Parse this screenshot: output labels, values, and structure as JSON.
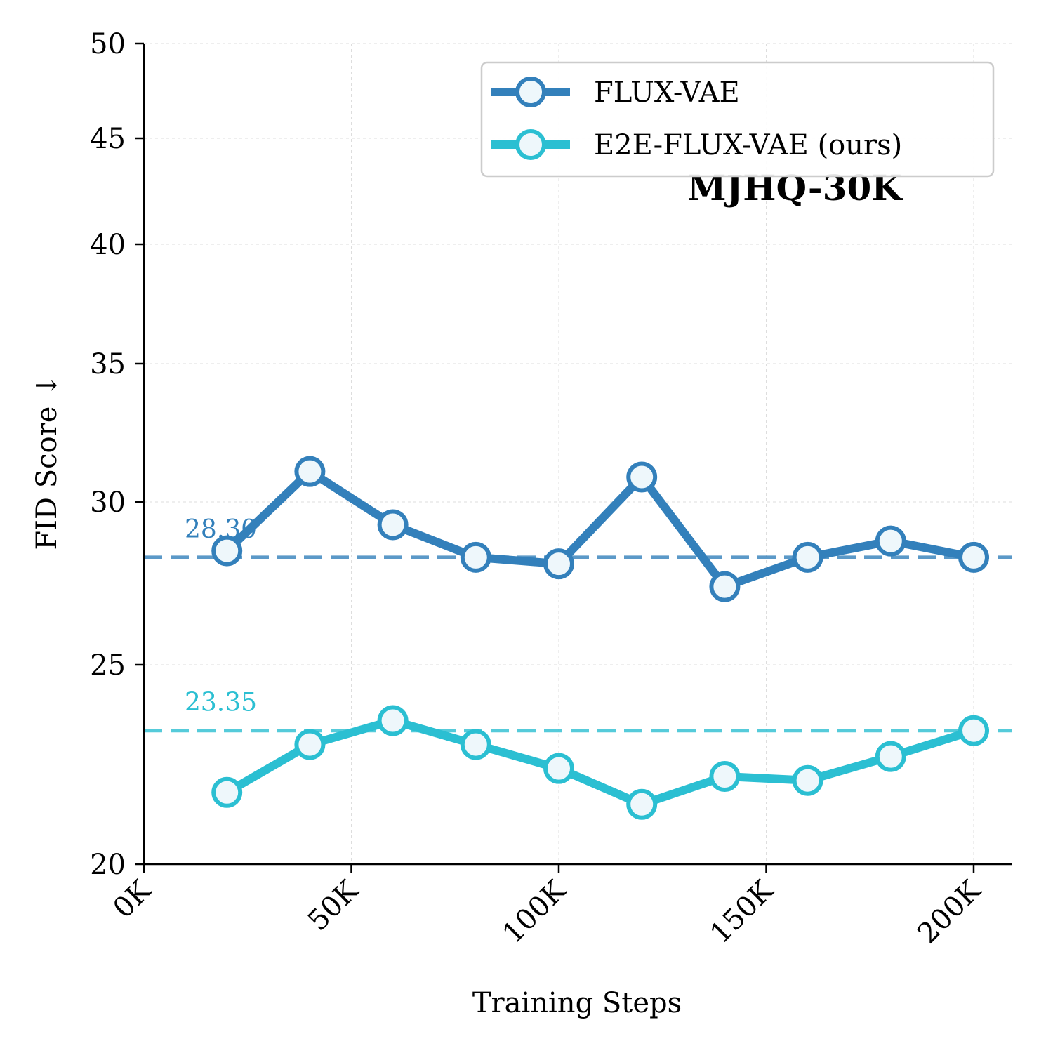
{
  "chart_data": {
    "type": "line",
    "title": "MJHQ-30K",
    "xlabel": "Training Steps",
    "ylabel": "FID Score ↓",
    "xlim": [
      0,
      210000
    ],
    "ylim": [
      20,
      50
    ],
    "y_scale": "custom-nonlinear",
    "grid": true,
    "legend_position": "top-right",
    "x_ticks": [
      0,
      50000,
      100000,
      150000,
      200000
    ],
    "x_tick_labels": [
      "0K",
      "50K",
      "100K",
      "150K",
      "200K"
    ],
    "y_ticks": [
      20,
      25,
      30,
      35,
      40,
      45,
      50
    ],
    "y_tick_labels": [
      "20",
      "25",
      "30",
      "35",
      "40",
      "45",
      "50"
    ],
    "x": [
      20000,
      40000,
      60000,
      80000,
      100000,
      120000,
      140000,
      160000,
      180000,
      200000
    ],
    "series": [
      {
        "name": "FLUX-VAE",
        "color": "#3380bb",
        "values": [
          28.5,
          31.1,
          29.3,
          28.3,
          28.1,
          30.9,
          27.4,
          28.3,
          28.8,
          28.3
        ],
        "reference": {
          "value": 28.3,
          "label": "28.30"
        }
      },
      {
        "name": "E2E-FLUX-VAE (ours)",
        "color": "#2bbfd2",
        "values": [
          21.8,
          23.0,
          23.6,
          23.0,
          22.4,
          21.5,
          22.2,
          22.1,
          22.7,
          23.35
        ],
        "reference": {
          "value": 23.35,
          "label": "23.35"
        }
      }
    ]
  }
}
